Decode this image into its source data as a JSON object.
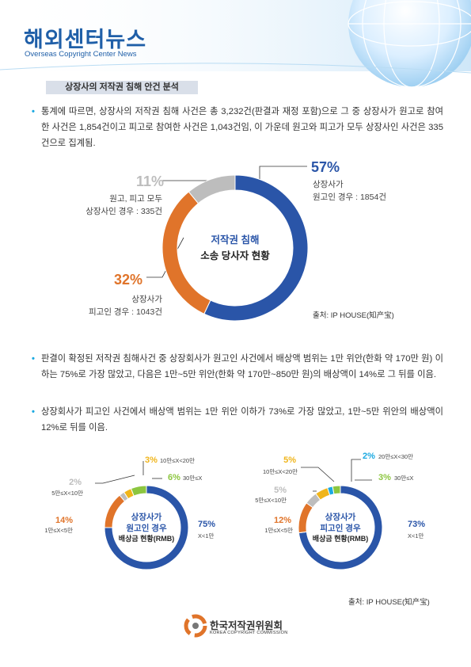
{
  "header": {
    "title": "해외센터뉴스",
    "subtitle": "Overseas Copyright Center News"
  },
  "section_title": "상장사의 저작권 침해 안건 분석",
  "paragraphs": [
    "통계에 따르면, 상장사의 저작권 침해 사건은 총 3,232건(판결과 재정 포함)으로 그 중 상장사가 원고로 참여한 사건은 1,854건이고 피고로 참여한 사건은 1,043건임, 이 가운데 원고와 피고가 모두 상장사인 사건은 335건으로 집계됨.",
    "판결이 확정된 저작권 침해사건 중 상장회사가 원고인 사건에서 배상액 범위는 1만 위안(한화 약 170만 원) 이하는 75%로 가장 많았고, 다음은 1만~5만 위안(한화 약 170만~850만 원)의 배상액이 14%로 그 뒤를 이음.",
    "상장회사가 피고인 사건에서 배상액 범위는 1만 위안 이하가 73%로 가장 많았고, 1만~5만 위안의 배상액이 12%로 뒤를 이음."
  ],
  "chart_data": [
    {
      "type": "donut",
      "center_text": [
        "저작권 침해",
        "소송 당사자 현황"
      ],
      "categories": [
        "상장사가\n원고인 경우 : 1854건",
        "상장사가\n피고인 경우 : 1043건",
        "원고, 피고 모두\n상장사인 경우 :  335건"
      ],
      "values": [
        57,
        32,
        11
      ],
      "value_labels": [
        "57%",
        "32%",
        "11%"
      ],
      "colors": [
        "#2a55a8",
        "#e0742a",
        "#bdbdbd"
      ],
      "source": "출처: IP HOUSE(知产宝)"
    },
    {
      "type": "donut",
      "center_text": [
        "상장사가",
        "원고인 경우",
        "배상금 현황(RMB)"
      ],
      "categories": [
        "X<1만",
        "1만≤X<5만",
        "5만≤X<10만",
        "10만≤X<20만",
        "30만≤X"
      ],
      "values": [
        75,
        14,
        2,
        3,
        6
      ],
      "value_labels": [
        "75%",
        "14%",
        "2%",
        "3%",
        "6%"
      ],
      "colors": [
        "#2a55a8",
        "#e0742a",
        "#bdbdbd",
        "#f0b51b",
        "#8cc63f"
      ]
    },
    {
      "type": "donut",
      "center_text": [
        "상장사가",
        "피고인 경우",
        "배상금 현황(RMB)"
      ],
      "categories": [
        "X<1만",
        "1만≤X<5만",
        "5만≤X<10만",
        "10만≤X<20만",
        "20만≤X<30만",
        "30만≤X"
      ],
      "values": [
        73,
        12,
        5,
        5,
        2,
        3
      ],
      "value_labels": [
        "73%",
        "12%",
        "5%",
        "5%",
        "2%",
        "3%"
      ],
      "colors": [
        "#2a55a8",
        "#e0742a",
        "#bdbdbd",
        "#f0b51b",
        "#1ba9e1",
        "#8cc63f"
      ],
      "source": "출처: IP HOUSE(知产宝)"
    }
  ],
  "footer": {
    "name": "한국저작권위원회",
    "name_en": "KOREA COPYRIGHT COMMISSION"
  }
}
